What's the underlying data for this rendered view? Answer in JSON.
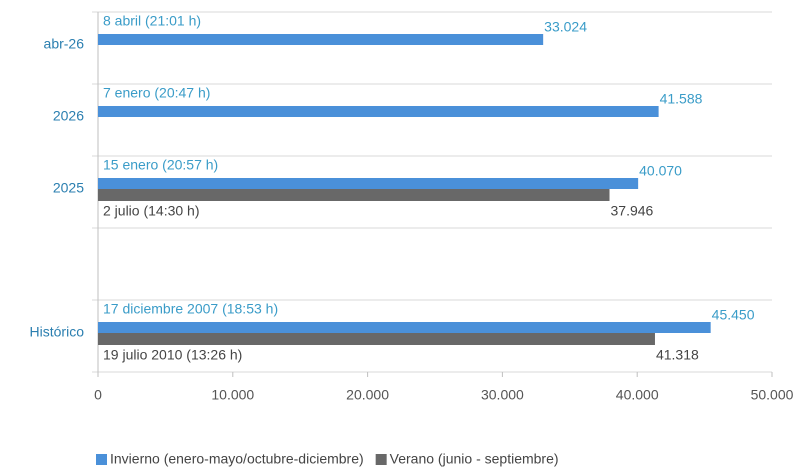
{
  "chart_data": {
    "type": "hbar",
    "categories": [
      "abr-26",
      "2026",
      "2025",
      null,
      "Histórico"
    ],
    "series": [
      {
        "name": "Invierno (enero-mayo/octubre-diciembre)",
        "color": "#4a90d9",
        "values": [
          33024,
          41588,
          40070,
          null,
          45450
        ],
        "value_labels": [
          "33.024",
          "41.588",
          "40.070",
          null,
          "45.450"
        ],
        "dates": [
          "8 abril (21:01 h)",
          "7 enero (20:47 h)",
          "15 enero (20:57 h)",
          null,
          "17 diciembre 2007 (18:53 h)"
        ]
      },
      {
        "name": "Verano (junio - septiembre)",
        "color": "#686868",
        "values": [
          null,
          null,
          37946,
          null,
          41318
        ],
        "value_labels": [
          null,
          null,
          "37.946",
          null,
          "41.318"
        ],
        "dates": [
          null,
          null,
          "2 julio (14:30 h)",
          null,
          "19 julio 2010 (13:26 h)"
        ]
      }
    ],
    "xlim": [
      0,
      50000
    ],
    "xticks": [
      0,
      {
        "value": 10000,
        "label": "10.000"
      },
      {
        "value": 20000,
        "label": "20.000"
      },
      {
        "value": 30000,
        "label": "30.000"
      },
      {
        "value": 40000,
        "label": "40.000"
      },
      {
        "value": 50000,
        "label": "50.000"
      }
    ],
    "legend": "bottom"
  }
}
